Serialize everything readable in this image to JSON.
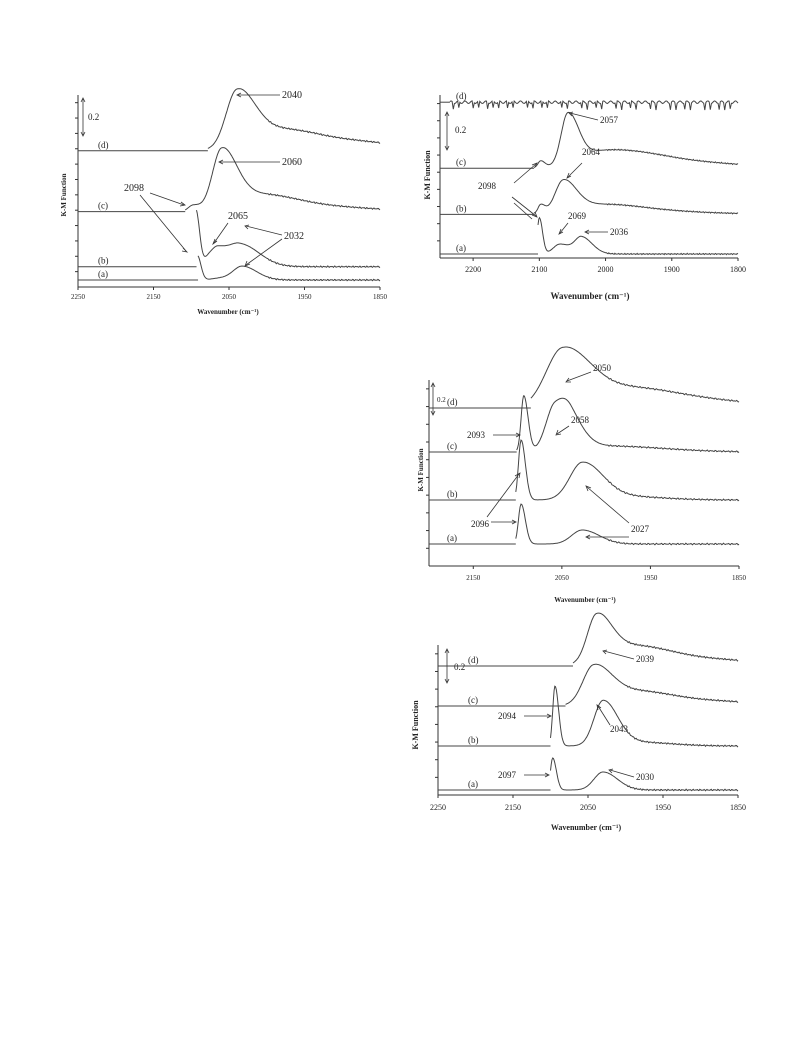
{
  "chart_data": [
    {
      "type": "line",
      "xlabel": "Wavenumber (cm⁻¹)",
      "ylabel": "K-M Function",
      "xlim": [
        2250,
        1850
      ],
      "xticks": [
        2250,
        2150,
        2050,
        1950,
        1850
      ],
      "scale_bar": "0.2",
      "series": [
        {
          "name": "(a)",
          "offset": 0.0,
          "baseline_end": 2091,
          "peaks": [
            [
              2092,
              0.13,
              3
            ],
            [
              2060,
              0.01,
              12
            ],
            [
              2032,
              0.07,
              12
            ]
          ]
        },
        {
          "name": "(b)",
          "offset": 0.07,
          "baseline_end": 2093,
          "peaks": [
            [
              2094,
              0.3,
              3
            ],
            [
              2075,
              0.05,
              8
            ],
            [
              2065,
              0.05,
              8
            ],
            [
              2036,
              0.12,
              16
            ]
          ]
        },
        {
          "name": "(c)",
          "offset": 0.36,
          "baseline_end": 2108,
          "peaks": [
            [
              2098,
              0.03,
              6
            ],
            [
              2060,
              0.3,
              12
            ],
            [
              2020,
              0.08,
              30
            ],
            [
              1950,
              0.03,
              50
            ]
          ]
        },
        {
          "name": "(d)",
          "offset": 0.68,
          "baseline_end": 2078,
          "peaks": [
            [
              2040,
              0.28,
              14
            ],
            [
              2000,
              0.08,
              30
            ],
            [
              1930,
              0.06,
              60
            ]
          ]
        }
      ],
      "annotations": [
        "2040",
        "2060",
        "2098",
        "2065",
        "2032"
      ]
    },
    {
      "type": "line",
      "xlabel": "Wavenumber (cm⁻¹)",
      "ylabel": "K-M Function",
      "xlim": [
        2250,
        1800
      ],
      "xticks": [
        2200,
        2100,
        2000,
        1900,
        1800
      ],
      "scale_bar": "0.2",
      "series": [
        {
          "name": "(a)",
          "offset": 0.0,
          "baseline_end": 2102,
          "peaks": [
            [
              2100,
              0.22,
              3
            ],
            [
              2069,
              0.06,
              10
            ],
            [
              2036,
              0.1,
              10
            ]
          ]
        },
        {
          "name": "(b)",
          "offset": 0.24,
          "baseline_end": 2108,
          "peaks": [
            [
              2098,
              0.05,
              4
            ],
            [
              2064,
              0.18,
              12
            ],
            [
              2020,
              0.05,
              40
            ],
            [
              1950,
              0.02,
              60
            ]
          ]
        },
        {
          "name": "(c)",
          "offset": 0.52,
          "baseline_end": 2108,
          "peaks": [
            [
              2098,
              0.04,
              4
            ],
            [
              2057,
              0.3,
              10
            ],
            [
              2000,
              0.1,
              40
            ],
            [
              1900,
              0.04,
              60
            ]
          ]
        },
        {
          "name": "(d)",
          "offset": 0.92,
          "baseline_end": 2235,
          "peaks": []
        }
      ],
      "annotations": [
        "2057",
        "2064",
        "2098",
        "2069",
        "2036"
      ]
    },
    {
      "type": "line",
      "xlabel": "Wavenumber (cm⁻¹)",
      "ylabel": "K-M Function",
      "xlim": [
        2200,
        1850
      ],
      "xticks": [
        2150,
        2050,
        1950,
        1850
      ],
      "scale_bar": "0.2",
      "series": [
        {
          "name": "(a)",
          "offset": 0.0,
          "baseline_end": 2102,
          "peaks": [
            [
              2096,
              0.2,
              3
            ],
            [
              2027,
              0.07,
              12
            ]
          ]
        },
        {
          "name": "(b)",
          "offset": 0.22,
          "baseline_end": 2102,
          "peaks": [
            [
              2096,
              0.3,
              3
            ],
            [
              2027,
              0.18,
              14
            ],
            [
              1990,
              0.02,
              30
            ]
          ]
        },
        {
          "name": "(c)",
          "offset": 0.46,
          "baseline_end": 2101,
          "peaks": [
            [
              2093,
              0.28,
              3
            ],
            [
              2058,
              0.22,
              10
            ],
            [
              2040,
              0.1,
              10
            ],
            [
              2000,
              0.03,
              40
            ]
          ]
        },
        {
          "name": "(d)",
          "offset": 0.68,
          "baseline_end": 2085,
          "peaks": [
            [
              2050,
              0.26,
              18
            ],
            [
              2000,
              0.08,
              40
            ],
            [
              1930,
              0.04,
              60
            ]
          ]
        }
      ],
      "annotations": [
        "2050",
        "2058",
        "2093",
        "2096",
        "2027"
      ]
    },
    {
      "type": "line",
      "xlabel": "Wavenumber (cm⁻¹)",
      "ylabel": "K-M Function",
      "xlim": [
        2250,
        1850
      ],
      "xticks": [
        2250,
        2150,
        2050,
        1950,
        1850
      ],
      "scale_bar": "0.2",
      "series": [
        {
          "name": "(a)",
          "offset": 0.0,
          "baseline_end": 2100,
          "peaks": [
            [
              2097,
              0.16,
              3
            ],
            [
              2030,
              0.09,
              12
            ]
          ]
        },
        {
          "name": "(b)",
          "offset": 0.22,
          "baseline_end": 2100,
          "peaks": [
            [
              2094,
              0.3,
              3
            ],
            [
              2030,
              0.22,
              12
            ],
            [
              1990,
              0.02,
              30
            ]
          ]
        },
        {
          "name": "(c)",
          "offset": 0.42,
          "baseline_end": 2080,
          "peaks": [
            [
              2043,
              0.18,
              14
            ],
            [
              2000,
              0.06,
              30
            ],
            [
              1930,
              0.03,
              60
            ]
          ]
        },
        {
          "name": "(d)",
          "offset": 0.62,
          "baseline_end": 2070,
          "peaks": [
            [
              2039,
              0.22,
              12
            ],
            [
              2000,
              0.08,
              30
            ],
            [
              1930,
              0.04,
              60
            ]
          ]
        }
      ],
      "annotations": [
        "2039",
        "2094",
        "2043",
        "2097",
        "2030"
      ]
    }
  ]
}
